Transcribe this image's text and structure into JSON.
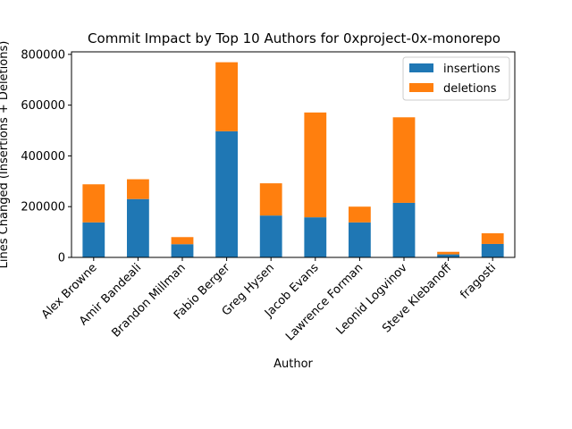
{
  "chart_data": {
    "type": "bar",
    "stacked": true,
    "title": "Commit Impact by Top 10 Authors for 0xproject-0x-monorepo",
    "xlabel": "Author",
    "ylabel": "Lines Changed (Insertions + Deletions)",
    "ylim": [
      0,
      810000
    ],
    "yticks": [
      0,
      200000,
      400000,
      600000,
      800000
    ],
    "ytick_labels": [
      "0",
      "200000",
      "400000",
      "600000",
      "800000"
    ],
    "legend_position": "upper-right",
    "grid": false,
    "categories": [
      "Alex Browne",
      "Amir Bandeali",
      "Brandon Millman",
      "Fabio Berger",
      "Greg Hysen",
      "Jacob Evans",
      "Lawrence Forman",
      "Leonid Logvinov",
      "Steve Klebanoff",
      "fragosti"
    ],
    "series": [
      {
        "name": "insertions",
        "color": "#1f77b4",
        "values": [
          138000,
          230000,
          52000,
          497000,
          165000,
          158000,
          138000,
          215000,
          12000,
          53000
        ]
      },
      {
        "name": "deletions",
        "color": "#ff7f0e",
        "values": [
          150000,
          78000,
          28000,
          272000,
          127000,
          413000,
          62000,
          337000,
          10000,
          42000
        ]
      }
    ]
  }
}
